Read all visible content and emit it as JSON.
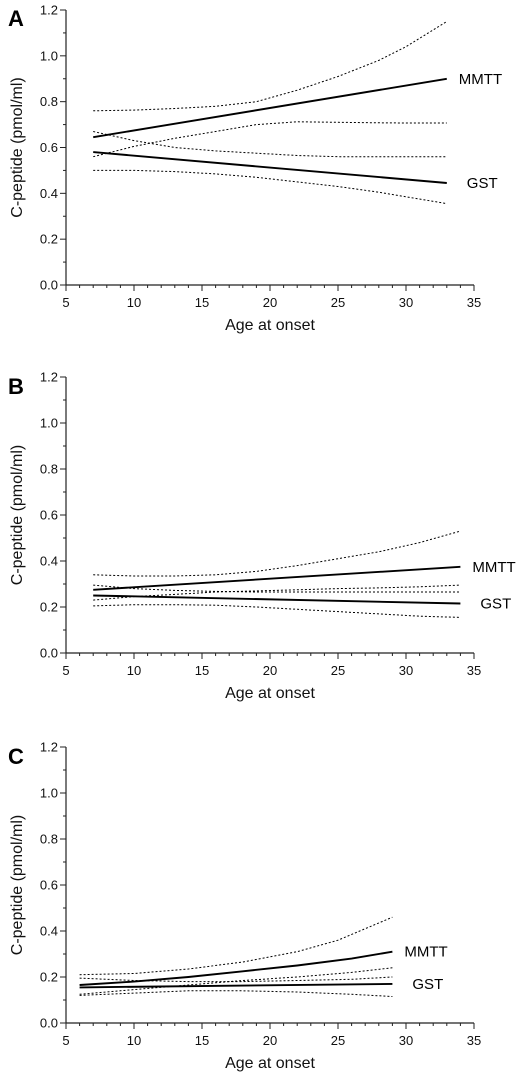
{
  "chart_data": [
    {
      "type": "line",
      "panel": "A",
      "xlabel": "Age at onset",
      "ylabel": "C-peptide (pmol/ml)",
      "xlim": [
        5,
        35
      ],
      "ylim": [
        0.0,
        1.2
      ],
      "xticks": [
        "5",
        "10",
        "15",
        "20",
        "25",
        "30",
        "35"
      ],
      "yticks": [
        "0.0",
        "0.2",
        "0.4",
        "0.6",
        "0.8",
        "1.0",
        "1.2"
      ],
      "grid": false,
      "series": [
        {
          "name": "MMTT",
          "style": "solid",
          "points": [
            [
              7,
              0.645
            ],
            [
              33,
              0.9
            ]
          ]
        },
        {
          "style": "dotted",
          "points": [
            [
              7,
              0.76
            ],
            [
              10,
              0.763
            ],
            [
              13,
              0.77
            ],
            [
              16,
              0.78
            ],
            [
              19,
              0.8
            ],
            [
              22,
              0.85
            ],
            [
              25,
              0.91
            ],
            [
              28,
              0.98
            ],
            [
              30,
              1.04
            ],
            [
              33,
              1.15
            ]
          ]
        },
        {
          "style": "dotted",
          "points": [
            [
              7,
              0.56
            ],
            [
              10,
              0.605
            ],
            [
              13,
              0.64
            ],
            [
              16,
              0.67
            ],
            [
              19,
              0.7
            ],
            [
              22,
              0.712
            ],
            [
              25,
              0.71
            ],
            [
              28,
              0.708
            ],
            [
              30,
              0.707
            ],
            [
              33,
              0.707
            ]
          ]
        },
        {
          "name": "GST",
          "style": "solid",
          "points": [
            [
              7,
              0.58
            ],
            [
              33,
              0.445
            ]
          ]
        },
        {
          "style": "dotted",
          "points": [
            [
              7,
              0.67
            ],
            [
              10,
              0.63
            ],
            [
              13,
              0.6
            ],
            [
              16,
              0.585
            ],
            [
              19,
              0.575
            ],
            [
              22,
              0.565
            ],
            [
              25,
              0.56
            ],
            [
              28,
              0.56
            ],
            [
              30,
              0.56
            ],
            [
              33,
              0.56
            ]
          ]
        },
        {
          "style": "dotted",
          "points": [
            [
              7,
              0.5
            ],
            [
              10,
              0.5
            ],
            [
              13,
              0.495
            ],
            [
              16,
              0.485
            ],
            [
              19,
              0.47
            ],
            [
              22,
              0.45
            ],
            [
              25,
              0.43
            ],
            [
              28,
              0.405
            ],
            [
              30,
              0.385
            ],
            [
              33,
              0.355
            ]
          ]
        }
      ]
    },
    {
      "type": "line",
      "panel": "B",
      "xlabel": "Age at onset",
      "ylabel": "C-peptide (pmol/ml)",
      "xlim": [
        5,
        35
      ],
      "ylim": [
        0.0,
        1.2
      ],
      "xticks": [
        "5",
        "10",
        "15",
        "20",
        "25",
        "30",
        "35"
      ],
      "yticks": [
        "0.0",
        "0.2",
        "0.4",
        "0.6",
        "0.8",
        "1.0",
        "1.2"
      ],
      "grid": false,
      "series": [
        {
          "name": "MMTT",
          "style": "solid",
          "points": [
            [
              7,
              0.275
            ],
            [
              34,
              0.375
            ]
          ]
        },
        {
          "style": "dotted",
          "points": [
            [
              7,
              0.34
            ],
            [
              10,
              0.335
            ],
            [
              13,
              0.335
            ],
            [
              16,
              0.34
            ],
            [
              19,
              0.355
            ],
            [
              22,
              0.38
            ],
            [
              25,
              0.41
            ],
            [
              28,
              0.44
            ],
            [
              31,
              0.48
            ],
            [
              34,
              0.53
            ]
          ]
        },
        {
          "style": "dotted",
          "points": [
            [
              7,
              0.23
            ],
            [
              10,
              0.245
            ],
            [
              13,
              0.255
            ],
            [
              16,
              0.265
            ],
            [
              19,
              0.27
            ],
            [
              22,
              0.275
            ],
            [
              25,
              0.28
            ],
            [
              28,
              0.283
            ],
            [
              31,
              0.288
            ],
            [
              34,
              0.295
            ]
          ]
        },
        {
          "name": "GST",
          "style": "solid",
          "points": [
            [
              7,
              0.25
            ],
            [
              34,
              0.215
            ]
          ]
        },
        {
          "style": "dotted",
          "points": [
            [
              7,
              0.295
            ],
            [
              10,
              0.28
            ],
            [
              13,
              0.272
            ],
            [
              16,
              0.268
            ],
            [
              19,
              0.265
            ],
            [
              22,
              0.265
            ],
            [
              25,
              0.265
            ],
            [
              28,
              0.265
            ],
            [
              31,
              0.265
            ],
            [
              34,
              0.265
            ]
          ]
        },
        {
          "style": "dotted",
          "points": [
            [
              7,
              0.205
            ],
            [
              10,
              0.21
            ],
            [
              13,
              0.21
            ],
            [
              16,
              0.208
            ],
            [
              19,
              0.2
            ],
            [
              22,
              0.19
            ],
            [
              25,
              0.18
            ],
            [
              28,
              0.17
            ],
            [
              31,
              0.16
            ],
            [
              34,
              0.155
            ]
          ]
        }
      ]
    },
    {
      "type": "line",
      "panel": "C",
      "xlabel": "Age at onset",
      "ylabel": "C-peptide (pmol/ml)",
      "xlim": [
        5,
        35
      ],
      "ylim": [
        0.0,
        1.2
      ],
      "xticks": [
        "5",
        "10",
        "15",
        "20",
        "25",
        "30",
        "35"
      ],
      "yticks": [
        "0.0",
        "0.2",
        "0.4",
        "0.6",
        "0.8",
        "1.0",
        "1.2"
      ],
      "grid": false,
      "series": [
        {
          "name": "MMTT",
          "style": "solid",
          "points": [
            [
              6,
              0.165
            ],
            [
              10,
              0.18
            ],
            [
              14,
              0.2
            ],
            [
              18,
              0.225
            ],
            [
              22,
              0.25
            ],
            [
              26,
              0.28
            ],
            [
              29,
              0.31
            ]
          ]
        },
        {
          "style": "dotted",
          "points": [
            [
              6,
              0.21
            ],
            [
              10,
              0.215
            ],
            [
              14,
              0.235
            ],
            [
              18,
              0.265
            ],
            [
              22,
              0.31
            ],
            [
              25,
              0.36
            ],
            [
              27,
              0.41
            ],
            [
              29,
              0.46
            ]
          ]
        },
        {
          "style": "dotted",
          "points": [
            [
              6,
              0.125
            ],
            [
              10,
              0.145
            ],
            [
              14,
              0.165
            ],
            [
              18,
              0.185
            ],
            [
              22,
              0.2
            ],
            [
              26,
              0.22
            ],
            [
              29,
              0.24
            ]
          ]
        },
        {
          "name": "GST",
          "style": "solid",
          "points": [
            [
              6,
              0.155
            ],
            [
              29,
              0.17
            ]
          ]
        },
        {
          "style": "dotted",
          "points": [
            [
              6,
              0.195
            ],
            [
              10,
              0.185
            ],
            [
              14,
              0.18
            ],
            [
              18,
              0.18
            ],
            [
              22,
              0.185
            ],
            [
              26,
              0.19
            ],
            [
              29,
              0.2
            ]
          ]
        },
        {
          "style": "dotted",
          "points": [
            [
              6,
              0.12
            ],
            [
              10,
              0.13
            ],
            [
              14,
              0.14
            ],
            [
              18,
              0.14
            ],
            [
              22,
              0.135
            ],
            [
              26,
              0.125
            ],
            [
              29,
              0.115
            ]
          ]
        }
      ]
    }
  ]
}
